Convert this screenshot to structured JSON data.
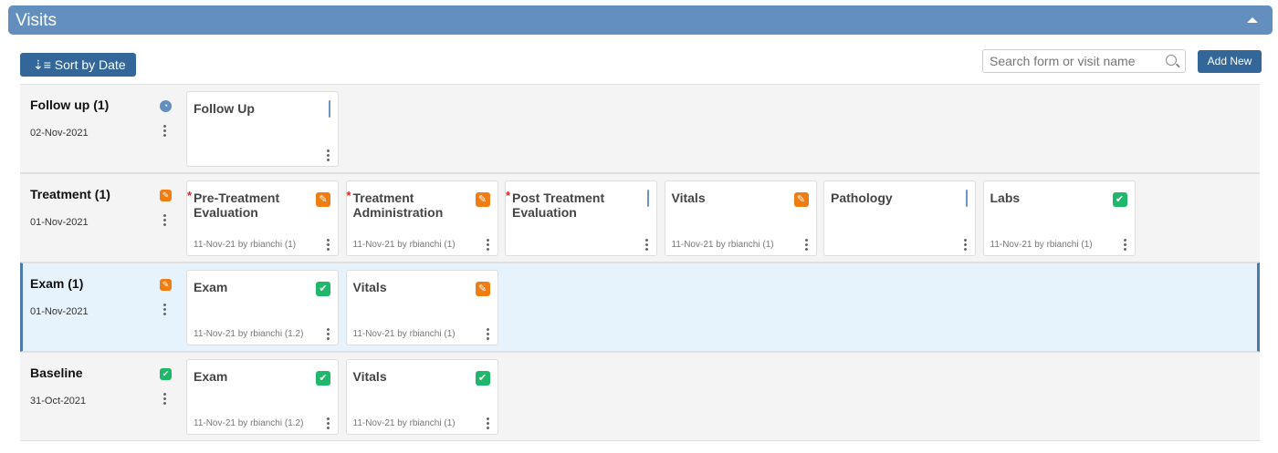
{
  "header": {
    "title": "Visits"
  },
  "toolbar": {
    "sort_label": "Sort by Date",
    "search_placeholder": "Search form or visit name",
    "add_label": "Add New"
  },
  "colors": {
    "header": "#628fbd",
    "button": "#336699",
    "edit": "#f07d12",
    "done": "#1fb86b",
    "selected_row": "#e6f2fc"
  },
  "visits": [
    {
      "name": "Follow up (1)",
      "date": "02-Nov-2021",
      "status": "clock-icon",
      "selected": false,
      "forms": [
        {
          "title": "Follow Up",
          "status": "document-icon",
          "required": false,
          "meta": ""
        }
      ]
    },
    {
      "name": "Treatment (1)",
      "date": "01-Nov-2021",
      "status": "edit-icon",
      "selected": false,
      "forms": [
        {
          "title": "Pre-Treatment Evaluation",
          "status": "edit-icon",
          "required": true,
          "meta": "11-Nov-21 by rbianchi (1)"
        },
        {
          "title": "Treatment Administration",
          "status": "edit-icon",
          "required": true,
          "meta": "11-Nov-21 by rbianchi (1)"
        },
        {
          "title": "Post Treatment Evaluation",
          "status": "document-icon",
          "required": true,
          "meta": ""
        },
        {
          "title": "Vitals",
          "status": "edit-icon",
          "required": false,
          "meta": "11-Nov-21 by rbianchi (1)"
        },
        {
          "title": "Pathology",
          "status": "document-icon",
          "required": false,
          "meta": ""
        },
        {
          "title": "Labs",
          "status": "check-icon",
          "required": false,
          "meta": "11-Nov-21 by rbianchi (1)"
        }
      ]
    },
    {
      "name": "Exam (1)",
      "date": "01-Nov-2021",
      "status": "edit-icon",
      "selected": true,
      "forms": [
        {
          "title": "Exam",
          "status": "check-icon",
          "required": false,
          "meta": "11-Nov-21 by rbianchi (1.2)"
        },
        {
          "title": "Vitals",
          "status": "edit-icon",
          "required": false,
          "meta": "11-Nov-21 by rbianchi (1)"
        }
      ]
    },
    {
      "name": "Baseline",
      "date": "31-Oct-2021",
      "status": "check-icon",
      "selected": false,
      "forms": [
        {
          "title": "Exam",
          "status": "check-icon",
          "required": false,
          "meta": "11-Nov-21 by rbianchi (1.2)"
        },
        {
          "title": "Vitals",
          "status": "check-icon",
          "required": false,
          "meta": "11-Nov-21 by rbianchi (1)"
        }
      ]
    }
  ]
}
